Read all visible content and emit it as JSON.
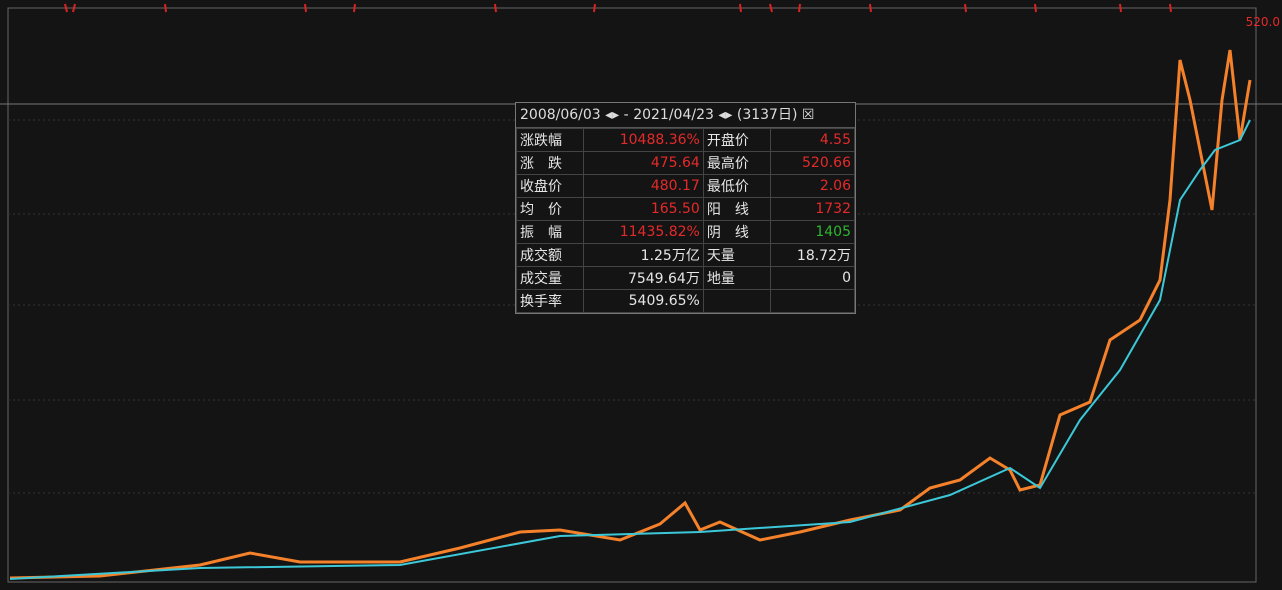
{
  "max_label": "520.0",
  "popup": {
    "start": "2008/06/03",
    "separator": "-",
    "end": "2021/04/23",
    "days": "(3137日)",
    "rows": [
      [
        "涨跌幅",
        "10488.36%",
        "开盘价",
        "4.55"
      ],
      [
        "涨　跌",
        "475.64",
        "最高价",
        "520.66"
      ],
      [
        "收盘价",
        "480.17",
        "最低价",
        "2.06"
      ],
      [
        "均　价",
        "165.50",
        "阳　线",
        "1732"
      ],
      [
        "振　幅",
        "11435.82%",
        "阴　线",
        "1405"
      ],
      [
        "成交额",
        "1.25万亿",
        "天量",
        "18.72万"
      ],
      [
        "成交量",
        "7549.64万",
        "地量",
        "0"
      ],
      [
        "换手率",
        "5409.65%",
        "",
        ""
      ]
    ]
  }
}
